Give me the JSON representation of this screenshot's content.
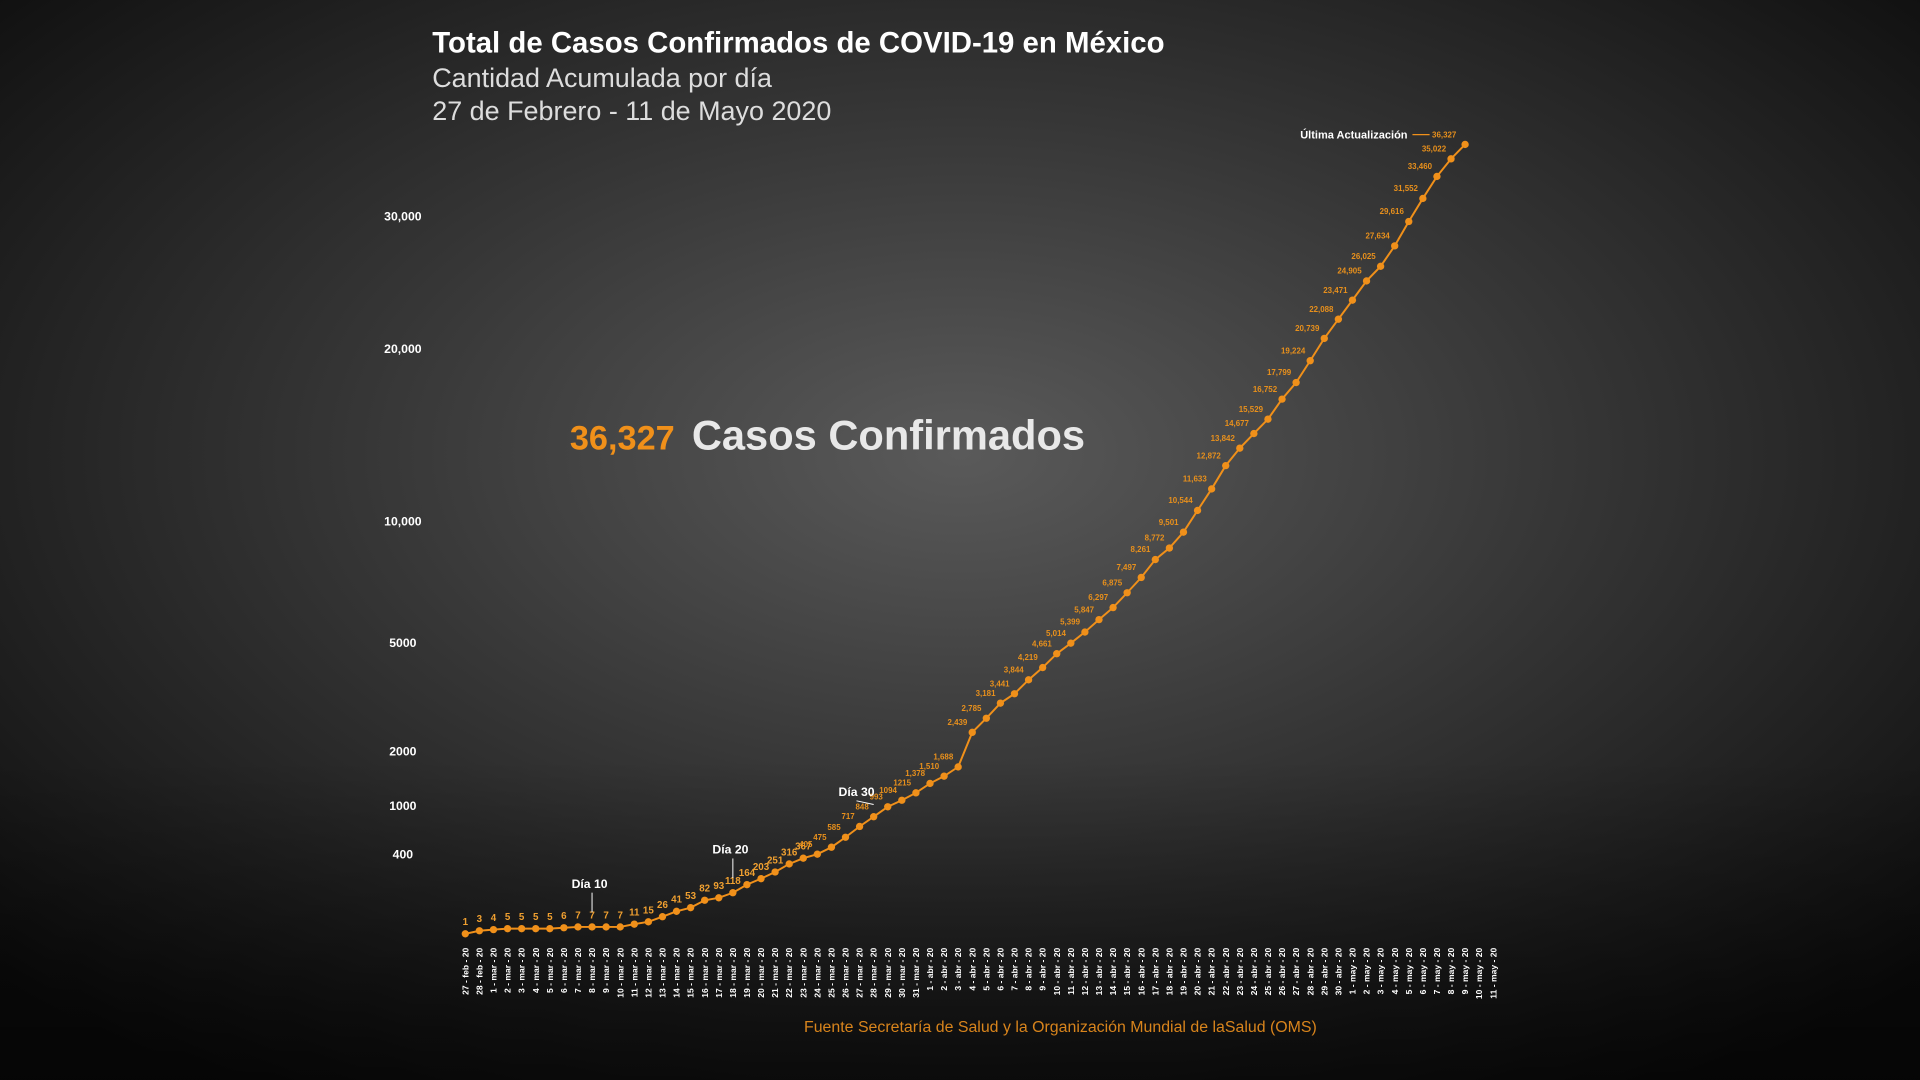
{
  "chart_data": {
    "type": "line",
    "title": "Total de Casos Confirmados de COVID-19 en México",
    "subtitle": "Cantidad Acumulada por día",
    "date_range": "27 de Febrero - 11 de Mayo 2020",
    "headline_value": "36,327",
    "headline_text": "Casos Confirmados",
    "source": "Fuente Secretaría de Salud y la Organización Mundial de laSalud (OMS)",
    "color": "#f0901a",
    "scale": "sqrt",
    "categories": [
      "27 - feb - 20",
      "28 - feb - 20",
      "1 - mar - 20",
      "2 - mar - 20",
      "3 - mar - 20",
      "4 - mar - 20",
      "5 - mar - 20",
      "6 - mar - 20",
      "7 - mar - 20",
      "8 - mar - 20",
      "9 - mar - 20",
      "10 - mar - 20",
      "11 - mar - 20",
      "12 - mar - 20",
      "13 - mar - 20",
      "14 - mar - 20",
      "15 - mar - 20",
      "16 - mar - 20",
      "17 - mar - 20",
      "18 - mar - 20",
      "19 - mar - 20",
      "20 - mar - 20",
      "21 - mar - 20",
      "22 - mar - 20",
      "23 - mar - 20",
      "24 - mar - 20",
      "25 - mar - 20",
      "26 - mar - 20",
      "27 - mar - 20",
      "28 - mar - 20",
      "29 - mar - 20",
      "30 - mar - 20",
      "31 - mar - 20",
      "1 - abr - 20",
      "2 - abr - 20",
      "3 - abr - 20",
      "4 - abr - 20",
      "5 - abr - 20",
      "6 - abr - 20",
      "7 - abr - 20",
      "8 - abr - 20",
      "9 - abr - 20",
      "10 - abr - 20",
      "11 - abr - 20",
      "12 - abr - 20",
      "13 - abr - 20",
      "14 - abr - 20",
      "15 - abr - 20",
      "16 - abr - 20",
      "17 - abr - 20",
      "18 - abr - 20",
      "19 - abr - 20",
      "20 - abr - 20",
      "21 - abr - 20",
      "22 - abr - 20",
      "23 - abr - 20",
      "24 - abr - 20",
      "25 - abr - 20",
      "26 - abr - 20",
      "27 - abr - 20",
      "28 - abr - 20",
      "29 - abr - 20",
      "30 - abr - 20",
      "1 - may - 20",
      "2 - may - 20",
      "3 - may - 20",
      "4 - may - 20",
      "5 - may - 20",
      "6 - may - 20",
      "7 - may - 20",
      "8 - may - 20",
      "9 - may - 20",
      "10 - may - 20",
      "11 - may - 20"
    ],
    "values": [
      1,
      3,
      4,
      5,
      5,
      5,
      5,
      6,
      7,
      7,
      7,
      7,
      11,
      15,
      26,
      41,
      53,
      82,
      93,
      118,
      164,
      203,
      251,
      316,
      367,
      405,
      475,
      585,
      717,
      848,
      993,
      1094,
      1215,
      1378,
      1510,
      1688,
      2439,
      2785,
      3181,
      3441,
      3844,
      4219,
      4661,
      5014,
      5399,
      5847,
      6297,
      6875,
      7497,
      8261,
      8772,
      9501,
      10544,
      11633,
      12872,
      13842,
      14677,
      15529,
      16752,
      17799,
      19224,
      20739,
      22088,
      23471,
      24905,
      26025,
      27634,
      29616,
      31552,
      33460,
      35022,
      36327,
      null,
      null
    ],
    "value_labels": [
      "1",
      "3",
      "4",
      "5",
      "5",
      "5",
      "5",
      "6",
      "7",
      "7",
      "7",
      "7",
      "11",
      "15",
      "26",
      "41",
      "53",
      "82",
      "93",
      "118",
      "164",
      "203",
      "251",
      "316",
      "367",
      "405",
      "475",
      "585",
      "717",
      "848",
      "993",
      "1094",
      "1215",
      "1,378",
      "1,510",
      "1,688",
      "2,439",
      "2,785",
      "3,181",
      "3,441",
      "3,844",
      "4,219",
      "4,661",
      "5,014",
      "5,399",
      "5,847",
      "6,297",
      "6,875",
      "7,497",
      "8,261",
      "8,772",
      "9,501",
      "10,544",
      "11,633",
      "12,872",
      "13,842",
      "14,677",
      "15,529",
      "16,752",
      "17,799",
      "19,224",
      "20,739",
      "22,088",
      "23,471",
      "24,905",
      "26,025",
      "27,634",
      "29,616",
      "31,552",
      "33,460",
      "35,022",
      "36,327",
      null,
      null
    ],
    "ylim": [
      0,
      37000
    ],
    "yticks": [
      400,
      1000,
      2000,
      5000,
      {
        "value": 10000,
        "label": "10,000"
      },
      {
        "value": 20000,
        "label": "20,000"
      },
      {
        "value": 30000,
        "label": "30,000"
      }
    ],
    "annotations": [
      {
        "text": "Día 10",
        "index": 9
      },
      {
        "text": "Día 20",
        "index": 19
      },
      {
        "text": "Día 30",
        "index": 29
      },
      {
        "text": "Última Actualización",
        "index": 71
      }
    ]
  }
}
